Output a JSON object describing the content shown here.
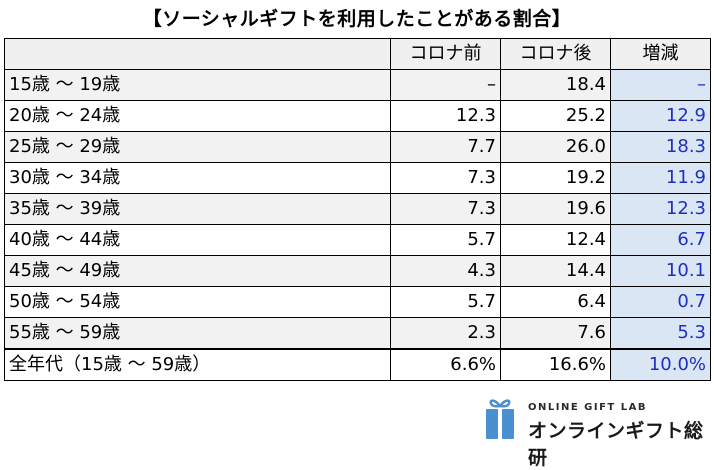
{
  "title": "【ソーシャルギフトを利用したことがある割合】",
  "chart_data": {
    "type": "table",
    "title": "【ソーシャルギフトを利用したことがある割合】",
    "columns": [
      "コロナ前",
      "コロナ後",
      "増減"
    ],
    "rows": [
      {
        "label": "15歳 ～ 19歳",
        "before": "–",
        "after": "18.4",
        "diff": "–"
      },
      {
        "label": "20歳 ～ 24歳",
        "before": "12.3",
        "after": "25.2",
        "diff": "12.9"
      },
      {
        "label": "25歳 ～ 29歳",
        "before": "7.7",
        "after": "26.0",
        "diff": "18.3"
      },
      {
        "label": "30歳 ～ 34歳",
        "before": "7.3",
        "after": "19.2",
        "diff": "11.9"
      },
      {
        "label": "35歳 ～ 39歳",
        "before": "7.3",
        "after": "19.6",
        "diff": "12.3"
      },
      {
        "label": "40歳 ～ 44歳",
        "before": "5.7",
        "after": "12.4",
        "diff": "6.7"
      },
      {
        "label": "45歳 ～ 49歳",
        "before": "4.3",
        "after": "14.4",
        "diff": "10.1"
      },
      {
        "label": "50歳 ～ 54歳",
        "before": "5.7",
        "after": "6.4",
        "diff": "0.7"
      },
      {
        "label": "55歳 ～ 59歳",
        "before": "2.3",
        "after": "7.6",
        "diff": "5.3"
      }
    ],
    "total": {
      "label": "全年代（15歳 ～ 59歳）",
      "before": "6.6%",
      "after": "16.6%",
      "diff": "10.0%"
    }
  },
  "logo": {
    "en": "ONLINE GIFT LAB",
    "jp": "オンラインギフト総研"
  },
  "colors": {
    "diff_bg": "#dbe6f5",
    "diff_text": "#1f2fbf",
    "logo_blue": "#4a8fd0"
  }
}
